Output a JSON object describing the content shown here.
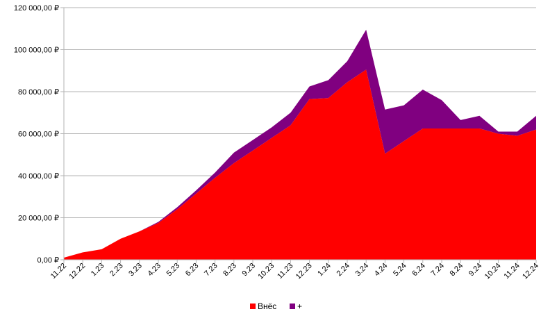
{
  "chart_data": {
    "type": "area",
    "stacked": true,
    "title": "",
    "xlabel": "",
    "ylabel": "",
    "ylim": [
      0,
      120000
    ],
    "yticks": [
      0,
      20000,
      40000,
      60000,
      80000,
      100000,
      120000
    ],
    "ytick_labels": [
      "0,00 ₽",
      "20 000,00 ₽",
      "40 000,00 ₽",
      "60 000,00 ₽",
      "80 000,00 ₽",
      "100 000,00 ₽",
      "120 000,00 ₽"
    ],
    "grid": "horizontal",
    "legend_position": "bottom",
    "categories": [
      "11.22",
      "12.22",
      "1.23",
      "2.23",
      "3.23",
      "4.23",
      "5.23",
      "6.23",
      "7.23",
      "8.23",
      "9.23",
      "10.23",
      "11.23",
      "12.23",
      "1.24",
      "2.24",
      "3.24",
      "4.24",
      "5.24",
      "6.24",
      "7.24",
      "8.24",
      "9.24",
      "10.24",
      "11.24",
      "12.24"
    ],
    "series": [
      {
        "name": "Внёс",
        "color": "#ff0000",
        "values": [
          1000,
          3500,
          5000,
          10000,
          13500,
          17500,
          24000,
          31500,
          39000,
          46000,
          52000,
          58000,
          64000,
          76500,
          77000,
          84500,
          90500,
          50500,
          56500,
          62500,
          62500,
          62500,
          62500,
          60000,
          59000,
          62000
        ]
      },
      {
        "name": "+",
        "color": "#800080",
        "values": [
          0,
          0,
          0,
          0,
          0,
          500,
          1000,
          1500,
          2500,
          5000,
          5000,
          5000,
          6000,
          6000,
          8500,
          10000,
          19000,
          21000,
          17000,
          18500,
          13500,
          4000,
          6000,
          1000,
          2000,
          6500
        ]
      }
    ]
  }
}
